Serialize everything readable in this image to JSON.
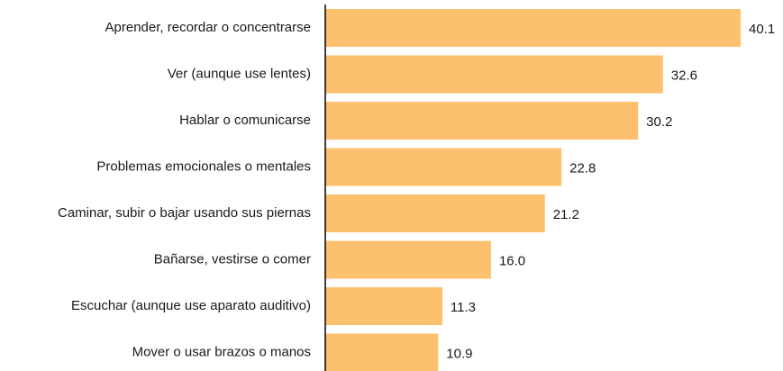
{
  "chart_data": {
    "type": "barh",
    "categories": [
      "Aprender, recordar o concentrarse",
      "Ver (aunque use lentes)",
      "Hablar o comunicarse",
      "Problemas emocionales o mentales",
      "Caminar, subir o bajar usando sus piernas",
      "Bañarse, vestirse o comer",
      "Escuchar (aunque use aparato auditivo)",
      "Mover o usar brazos o manos"
    ],
    "values": [
      40.1,
      32.6,
      30.2,
      22.8,
      21.2,
      16.0,
      11.3,
      10.9
    ],
    "value_labels": [
      "40.1",
      "32.6",
      "30.2",
      "22.8",
      "21.2",
      "16.0",
      "11.3",
      "10.9"
    ],
    "color": "#fdc06e"
  }
}
